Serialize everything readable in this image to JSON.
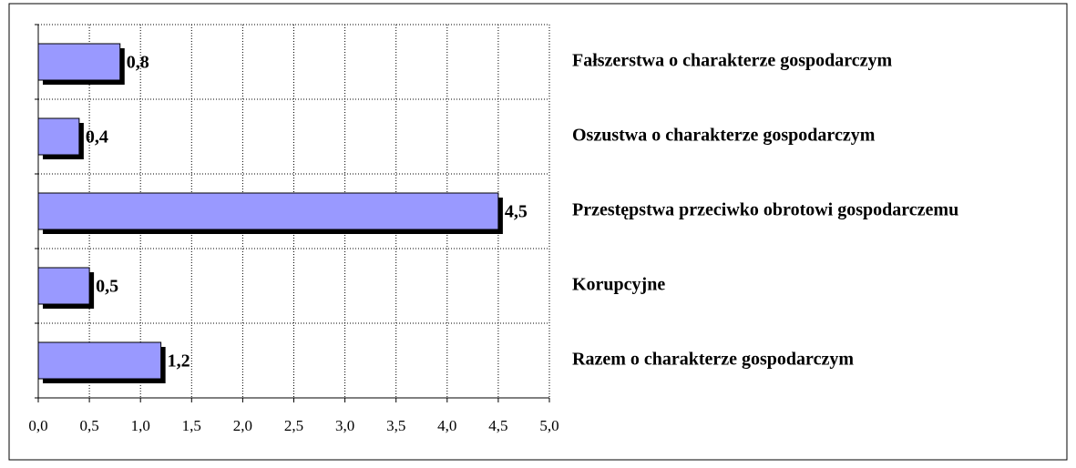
{
  "chart_data": {
    "type": "barh",
    "categories": [
      "Fałszerstwa o charakterze gospodarczym",
      "Oszustwa o charakterze gospodarczym",
      "Przestępstwa przeciwko obrotowi gospodarczemu",
      "Korupcyjne",
      "Razem o charakterze gospodarczym"
    ],
    "values": [
      0.8,
      0.4,
      4.5,
      0.5,
      1.2
    ],
    "value_labels": [
      "0,8",
      "0,4",
      "4,5",
      "0,5",
      "1,2"
    ],
    "color": "#9999ff",
    "xlim": [
      0,
      5
    ],
    "xticks": [
      {
        "value": 0,
        "label": "0,0"
      },
      {
        "value": 0.5,
        "label": "0,5"
      },
      {
        "value": 1,
        "label": "1,0"
      },
      {
        "value": 1.5,
        "label": "1,5"
      },
      {
        "value": 2,
        "label": "2,0"
      },
      {
        "value": 2.5,
        "label": "2,5"
      },
      {
        "value": 3,
        "label": "3,0"
      },
      {
        "value": 3.5,
        "label": "3,5"
      },
      {
        "value": 4,
        "label": "4,0"
      },
      {
        "value": 4.5,
        "label": "4,5"
      },
      {
        "value": 5,
        "label": "5,0"
      }
    ],
    "grid": true
  }
}
